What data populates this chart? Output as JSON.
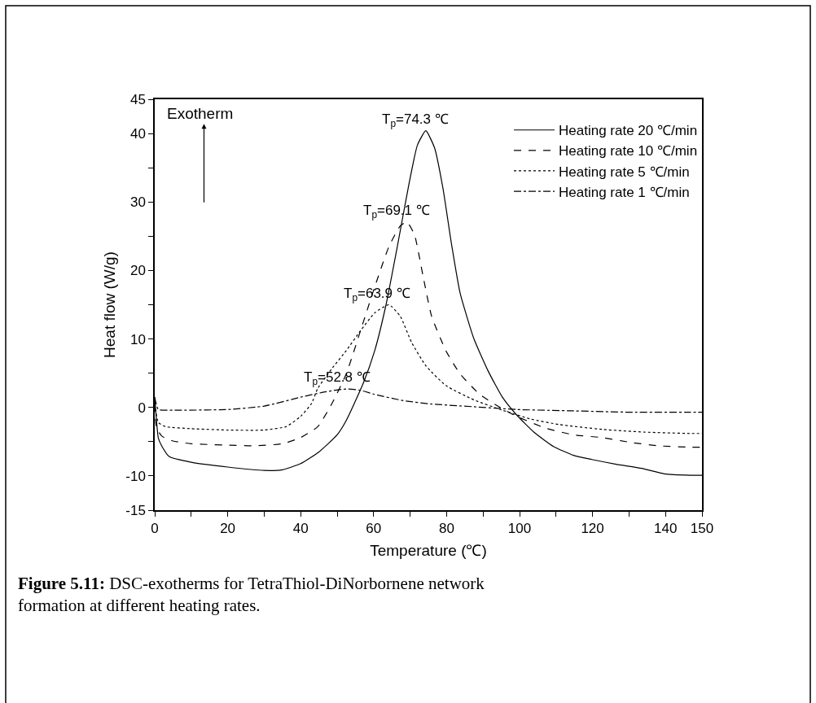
{
  "chart_data": {
    "type": "line",
    "xlabel": "Temperature (℃)",
    "ylabel": "Heat flow (W/g)",
    "xlim": [
      0,
      150
    ],
    "xticks": [
      0,
      {
        "value": 10,
        "label": null
      },
      20,
      {
        "value": 30,
        "label": null
      },
      40,
      {
        "value": 50,
        "label": null
      },
      60,
      {
        "value": 70,
        "label": null
      },
      80,
      {
        "value": 90,
        "label": null
      },
      100,
      {
        "value": 110,
        "label": null
      },
      120,
      {
        "value": 130,
        "label": null
      },
      140,
      150
    ],
    "ylim": [
      -15,
      45
    ],
    "yticks": [
      -15,
      -10,
      {
        "value": -5,
        "label": null
      },
      0,
      {
        "value": 5,
        "label": null
      },
      10,
      {
        "value": 15,
        "label": null
      },
      20,
      {
        "value": 25,
        "label": null
      },
      30,
      {
        "value": 35,
        "label": null
      },
      40,
      45
    ],
    "legend": "top right",
    "marker": "none",
    "series": [
      {
        "name": "Heating rate 20 ℃/min",
        "color": "#000000",
        "line_style": "solid",
        "x": [
          0,
          0.5,
          1,
          2,
          4,
          10,
          20,
          30,
          35,
          40,
          45,
          50,
          52.5,
          57.2,
          60.3,
          63.4,
          66.5,
          69.6,
          72,
          74.3,
          76.7,
          79,
          81.3,
          83.7,
          87.5,
          91.4,
          95.3,
          99.2,
          103.9,
          109.3,
          114.8,
          119.8,
          126.5,
          133.5,
          139.7,
          146.7,
          150
        ],
        "values": [
          1.5,
          -2,
          -4.5,
          -5.7,
          -7.2,
          -8,
          -8.7,
          -9.2,
          -9.1,
          -8.2,
          -6.5,
          -4,
          -1.9,
          3.6,
          8.3,
          15,
          23.5,
          32.4,
          38.3,
          40.4,
          37.9,
          32,
          24,
          16.7,
          10,
          5.3,
          1.5,
          -1.1,
          -3.6,
          -5.7,
          -7,
          -7.6,
          -8.3,
          -8.9,
          -9.7,
          -9.9,
          -9.9
        ]
      },
      {
        "name": "Heating rate 10 ℃/min",
        "color": "#000000",
        "line_style": "dashed",
        "x": [
          0,
          0.5,
          2,
          5,
          10,
          20,
          27,
          35,
          40,
          44.7,
          48.6,
          52.5,
          56.4,
          60.3,
          64.2,
          67.3,
          69.1,
          71.2,
          73.5,
          75.9,
          79.8,
          83.7,
          89.1,
          95.3,
          99.2,
          107,
          114.8,
          122.6,
          130.4,
          138.1,
          146.7,
          150
        ],
        "values": [
          0.5,
          -3,
          -4.2,
          -4.9,
          -5.3,
          -5.5,
          -5.6,
          -5.3,
          -4.4,
          -2.8,
          0.6,
          4.9,
          11.2,
          17.6,
          23.5,
          26.5,
          27.1,
          25.2,
          19.3,
          13.3,
          8.3,
          4.9,
          1.9,
          -0.2,
          -1.3,
          -3,
          -4,
          -4.4,
          -5.1,
          -5.6,
          -5.8,
          -5.8
        ]
      },
      {
        "name": "Heating rate 5 ℃/min",
        "color": "#000000",
        "line_style": "dotted",
        "x": [
          0,
          1,
          3,
          10,
          20,
          30,
          36,
          40,
          43,
          44.7,
          48.6,
          52.5,
          56.4,
          60.3,
          64.2,
          67.3,
          70.4,
          74.3,
          79.8,
          87.5,
          95.3,
          103.1,
          110.9,
          122.6,
          134.2,
          146.7,
          150
        ],
        "values": [
          0.5,
          -2.2,
          -2.8,
          -3.1,
          -3.3,
          -3.3,
          -2.8,
          -1.3,
          0.6,
          2.8,
          5.7,
          8.3,
          11.2,
          13.8,
          15,
          13.3,
          9.5,
          6.1,
          3.2,
          1.1,
          -0.4,
          -1.7,
          -2.5,
          -3.2,
          -3.6,
          -3.8,
          -3.8
        ]
      },
      {
        "name": "Heating rate 1 ℃/min",
        "color": "#000000",
        "line_style": "dashdot",
        "x": [
          0,
          1,
          5,
          20,
          30,
          40,
          47,
          52.5,
          56.4,
          60.3,
          68.1,
          75.9,
          87.5,
          99.2,
          114.8,
          130.4,
          146.7,
          150
        ],
        "values": [
          1.5,
          -0.3,
          -0.4,
          -0.3,
          0.2,
          1.5,
          2.3,
          2.7,
          2.5,
          1.9,
          1,
          0.5,
          0.1,
          -0.3,
          -0.5,
          -0.7,
          -0.7,
          -0.7
        ]
      }
    ],
    "annotations": [
      {
        "text": "T$_{p}$=74.3 ℃",
        "x": 74.3,
        "y": 40.4
      },
      {
        "text": "T$_{p}$=69.1 ℃",
        "x": 69.1,
        "y": 27.1
      },
      {
        "text": "T$_{p}$=63.9 ℃",
        "x": 63.9,
        "y": 15
      },
      {
        "text": "T$_{p}$=52.8 ℃",
        "x": 52.8,
        "y": 2.7
      },
      "Exotherm",
      "Figure 5.11: DSC-exotherms for TetraThiol-DiNorbornene network formation at different heating rates."
    ]
  }
}
